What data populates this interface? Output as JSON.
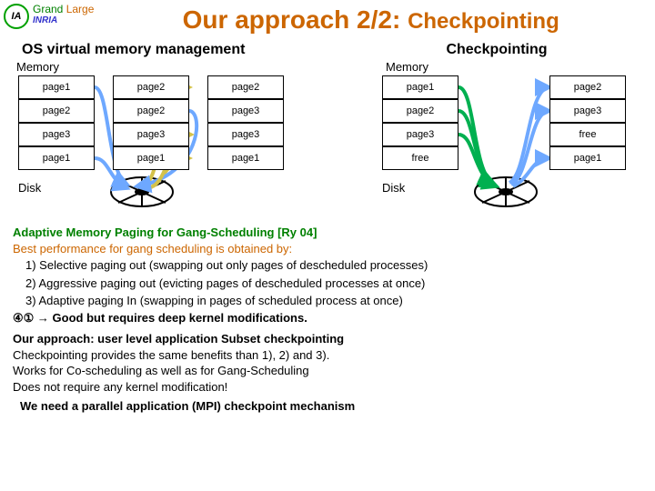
{
  "header": {
    "logo_initials": "IA",
    "logo_line1_a": "Grand",
    "logo_line1_b": " Large",
    "logo_line2": "INRIA",
    "title_main": "Our approach 2/2: ",
    "title_sub": "Checkpointing"
  },
  "sections": {
    "left_title": "OS virtual memory management",
    "right_title": "Checkpointing",
    "mem_label": "Memory",
    "disk_label": "Disk"
  },
  "left_grid": [
    [
      "page1",
      "page2",
      "page2"
    ],
    [
      "page2",
      "page2",
      "page3"
    ],
    [
      "page3",
      "page3",
      "page3"
    ],
    [
      "page1",
      "page1",
      "page1"
    ]
  ],
  "right_grid": [
    [
      "page1",
      "page2"
    ],
    [
      "page2",
      "page3"
    ],
    [
      "page3",
      "free"
    ],
    [
      "free",
      "page1"
    ]
  ],
  "flows": {
    "colors": {
      "blue": "#6ea8ff",
      "yellow": "#d4c24a",
      "green": "#00b050"
    },
    "stroke_width": 4
  },
  "text": {
    "line1": "Adaptive Memory Paging for Gang-Scheduling [Ry 04]",
    "line2": "Best performance for gang scheduling is obtained by:",
    "pts": [
      "1)    Selective paging out (swapping out only pages of descheduled processes)",
      "2)    Aggressive paging out (evicting pages of descheduled processes at once)",
      "3)    Adaptive paging In (swapping in pages of scheduled process at once)"
    ],
    "circled": "④①",
    "arrow": " → ",
    "arrow_rest": "Good but requires deep kernel modifications.",
    "approach_h": "Our approach: user level application Subset checkpointing",
    "approach_l1": "Checkpointing provides the same benefits than 1), 2) and 3).",
    "approach_l2": "Works for Co-scheduling as well as for Gang-Scheduling",
    "approach_l3": "Does not require any kernel modification!",
    "need": "We need a parallel application (MPI) checkpoint mechanism"
  },
  "disk_svg": {
    "ellipse_fill": "#ffffff",
    "ellipse_stroke": "#000000",
    "spoke_stroke": "#000000"
  }
}
